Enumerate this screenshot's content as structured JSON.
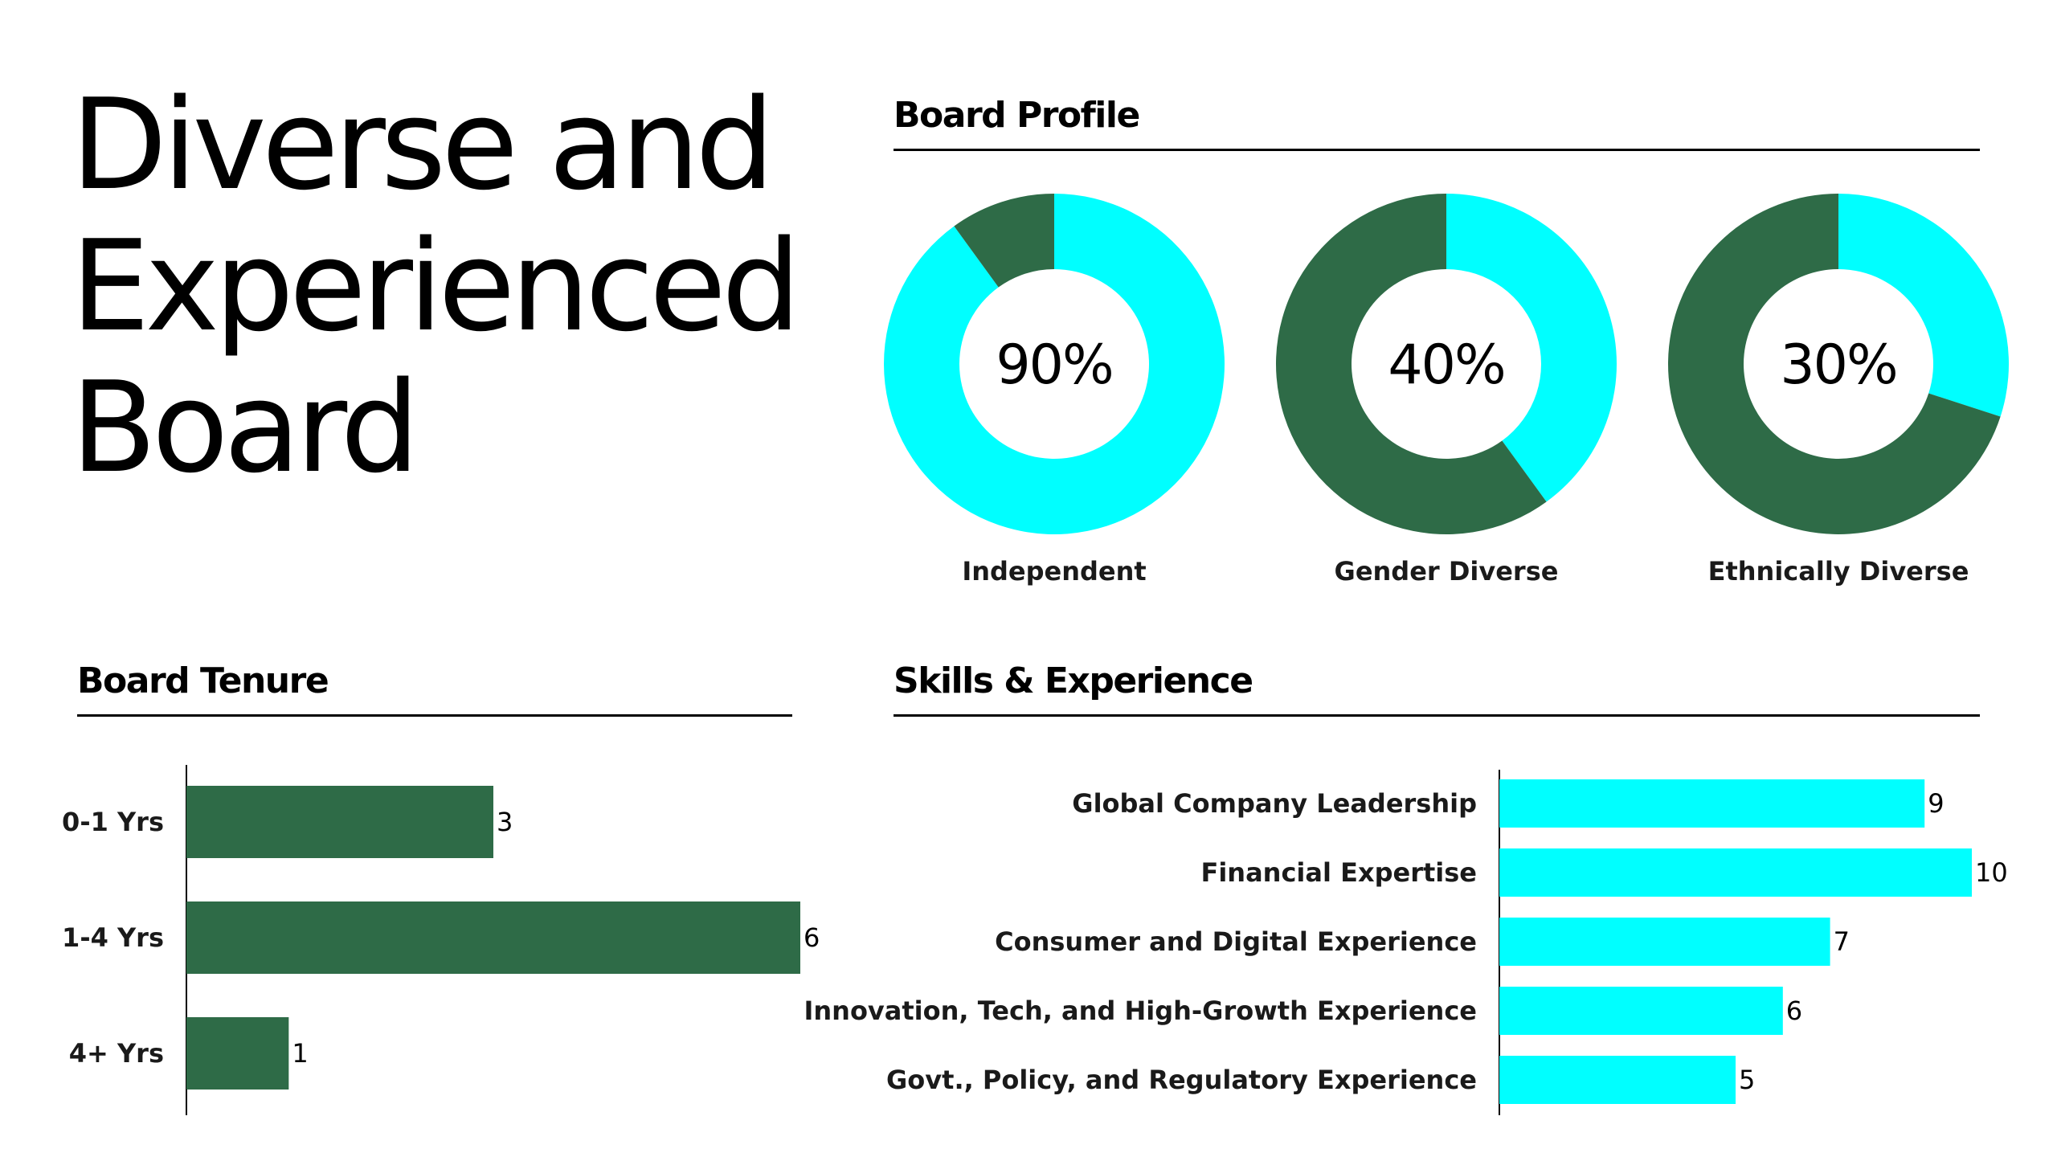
{
  "page": {
    "title_lines": [
      "Diverse and",
      "Experienced",
      "Board"
    ]
  },
  "sections": {
    "profile": "Board Profile",
    "tenure": "Board Tenure",
    "skills": "Skills & Experience"
  },
  "colors": {
    "cyan": "#00FFFF",
    "green": "#2E6B47",
    "axis": "#000000"
  },
  "chart_data": [
    {
      "type": "pie",
      "title": "Board Profile",
      "donuts": [
        {
          "label": "Independent",
          "value": 90,
          "display": "90%"
        },
        {
          "label": "Gender Diverse",
          "value": 40,
          "display": "40%"
        },
        {
          "label": "Ethnically Diverse",
          "value": 30,
          "display": "30%"
        }
      ]
    },
    {
      "type": "bar",
      "orientation": "horizontal",
      "title": "Board Tenure",
      "categories": [
        "0-1 Yrs",
        "1-4 Yrs",
        "4+ Yrs"
      ],
      "values": [
        3,
        6,
        1
      ],
      "xlim": [
        0,
        6
      ]
    },
    {
      "type": "bar",
      "orientation": "horizontal",
      "title": "Skills & Experience",
      "categories": [
        "Global Company Leadership",
        "Financial Expertise",
        "Consumer and Digital Experience",
        "Innovation, Tech, and High-Growth Experience",
        "Govt., Policy, and Regulatory Experience"
      ],
      "values": [
        9,
        10,
        7,
        6,
        5
      ],
      "xlim": [
        0,
        10
      ]
    }
  ]
}
